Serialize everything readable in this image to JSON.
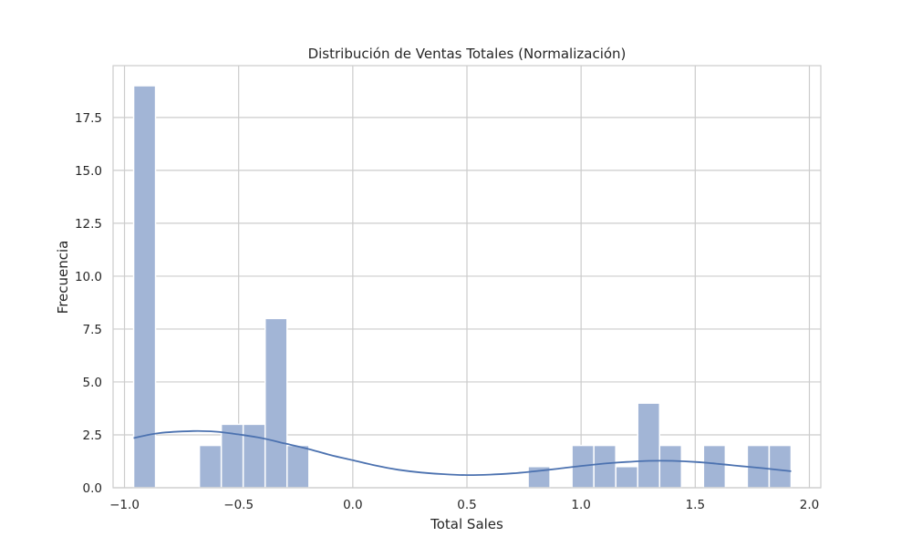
{
  "chart_data": {
    "type": "bar",
    "title": "Distribución de Ventas Totales (Normalización)",
    "xlabel": "Total Sales",
    "ylabel": "Frecuencia",
    "xlim": [
      -1.05,
      2.05
    ],
    "ylim": [
      0,
      19.95
    ],
    "xticks": [
      -1.0,
      -0.5,
      0.0,
      0.5,
      1.0,
      1.5,
      2.0
    ],
    "xtick_labels": [
      "−1.0",
      "−0.5",
      "0.0",
      "0.5",
      "1.0",
      "1.5",
      "2.0"
    ],
    "yticks": [
      0,
      2.5,
      5,
      7.5,
      10,
      12.5,
      15,
      17.5
    ],
    "ytick_labels": [
      "0.0",
      "2.5",
      "5.0",
      "7.5",
      "10.0",
      "12.5",
      "15.0",
      "17.5"
    ],
    "grid": true,
    "bin_range": [
      -0.96,
      1.92
    ],
    "bin_width": 0.096,
    "counts": [
      19,
      0,
      0,
      2,
      3,
      3,
      8,
      2,
      0,
      0,
      0,
      0,
      0,
      0,
      0,
      0,
      0,
      0,
      1,
      0,
      2,
      2,
      1,
      4,
      2,
      0,
      2,
      0,
      2,
      2
    ],
    "kde": {
      "x": [
        -0.96,
        -0.85,
        -0.7,
        -0.6,
        -0.5,
        -0.4,
        -0.3,
        -0.2,
        -0.1,
        0.0,
        0.1,
        0.2,
        0.3,
        0.4,
        0.5,
        0.6,
        0.7,
        0.8,
        0.9,
        1.0,
        1.1,
        1.2,
        1.3,
        1.4,
        1.5,
        1.6,
        1.7,
        1.8,
        1.92
      ],
      "y": [
        2.35,
        2.58,
        2.68,
        2.65,
        2.52,
        2.35,
        2.1,
        1.85,
        1.55,
        1.3,
        1.05,
        0.85,
        0.72,
        0.64,
        0.6,
        0.62,
        0.68,
        0.78,
        0.9,
        1.03,
        1.14,
        1.22,
        1.27,
        1.27,
        1.22,
        1.13,
        1.02,
        0.92,
        0.78
      ]
    },
    "colors": {
      "bar_fill": "#a2b5d6",
      "bar_edge": "#ffffff",
      "kde_line": "#4c72b0",
      "grid": "#cccccc",
      "background": "#ffffff",
      "text": "#262626"
    }
  }
}
